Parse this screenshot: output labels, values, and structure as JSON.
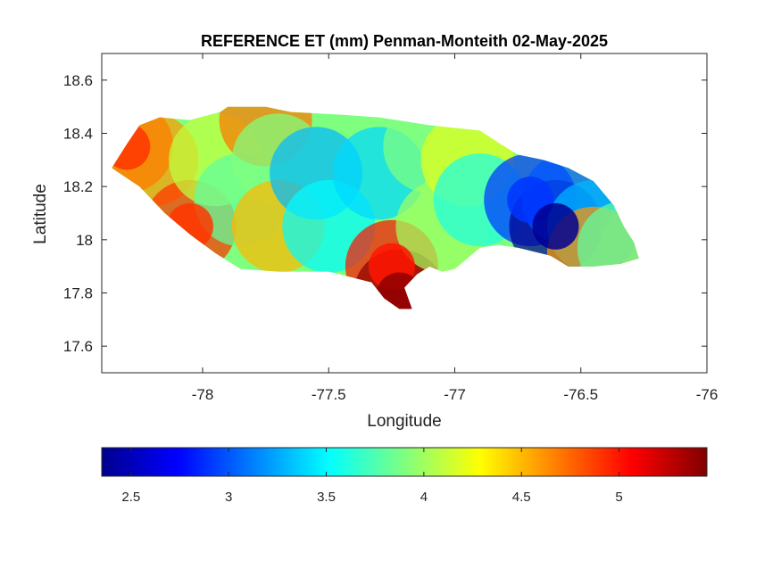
{
  "chart_data": {
    "type": "heatmap",
    "title": "REFERENCE ET (mm) Penman-Monteith 02-May-2025",
    "xlabel": "Longitude",
    "ylabel": "Latitude",
    "xlim": [
      -78.4,
      -76
    ],
    "ylim": [
      17.5,
      18.7
    ],
    "xticks": [
      -78,
      -77.5,
      -77,
      -76.5,
      -76
    ],
    "xtick_labels": [
      "-78",
      "-77.5",
      "-77",
      "-76.5",
      "-76"
    ],
    "yticks": [
      17.6,
      17.8,
      18,
      18.2,
      18.4,
      18.6
    ],
    "ytick_labels": [
      "17.6",
      "17.8",
      "18",
      "18.2",
      "18.4",
      "18.6"
    ],
    "colormap": "jet",
    "colorbar": {
      "orientation": "horizontal",
      "placement": "below",
      "range": [
        2.35,
        5.45
      ],
      "ticks": [
        2.5,
        3,
        3.5,
        4,
        4.5,
        5
      ],
      "tick_labels": [
        "2.5",
        "3",
        "3.5",
        "4",
        "4.5",
        "5"
      ]
    },
    "grid": false,
    "region_outline": [
      [
        -78.36,
        18.27
      ],
      [
        -78.3,
        18.36
      ],
      [
        -78.25,
        18.43
      ],
      [
        -78.17,
        18.46
      ],
      [
        -78.05,
        18.45
      ],
      [
        -77.93,
        18.48
      ],
      [
        -77.9,
        18.5
      ],
      [
        -77.75,
        18.5
      ],
      [
        -77.65,
        18.48
      ],
      [
        -77.45,
        18.47
      ],
      [
        -77.3,
        18.46
      ],
      [
        -77.1,
        18.43
      ],
      [
        -77.0,
        18.42
      ],
      [
        -76.9,
        18.41
      ],
      [
        -76.82,
        18.36
      ],
      [
        -76.75,
        18.32
      ],
      [
        -76.65,
        18.3
      ],
      [
        -76.55,
        18.27
      ],
      [
        -76.45,
        18.22
      ],
      [
        -76.37,
        18.13
      ],
      [
        -76.33,
        18.05
      ],
      [
        -76.29,
        17.99
      ],
      [
        -76.27,
        17.93
      ],
      [
        -76.34,
        17.91
      ],
      [
        -76.45,
        17.9
      ],
      [
        -76.55,
        17.9
      ],
      [
        -76.62,
        17.94
      ],
      [
        -76.75,
        17.97
      ],
      [
        -76.83,
        17.98
      ],
      [
        -76.9,
        17.97
      ],
      [
        -76.95,
        17.93
      ],
      [
        -77.0,
        17.89
      ],
      [
        -77.05,
        17.88
      ],
      [
        -77.1,
        17.9
      ],
      [
        -77.15,
        17.87
      ],
      [
        -77.2,
        17.82
      ],
      [
        -77.17,
        17.74
      ],
      [
        -77.22,
        17.74
      ],
      [
        -77.28,
        17.78
      ],
      [
        -77.33,
        17.84
      ],
      [
        -77.5,
        17.88
      ],
      [
        -77.6,
        17.88
      ],
      [
        -77.7,
        17.88
      ],
      [
        -77.85,
        17.89
      ],
      [
        -77.95,
        17.95
      ],
      [
        -78.05,
        18.02
      ],
      [
        -78.15,
        18.1
      ],
      [
        -78.25,
        18.2
      ]
    ],
    "field_anchors": [
      {
        "lon": -78.3,
        "lat": 18.35,
        "value": 4.9
      },
      {
        "lon": -78.2,
        "lat": 18.3,
        "value": 4.6
      },
      {
        "lon": -78.05,
        "lat": 18.05,
        "value": 4.9
      },
      {
        "lon": -77.95,
        "lat": 18.3,
        "value": 4.1
      },
      {
        "lon": -77.85,
        "lat": 18.15,
        "value": 3.8
      },
      {
        "lon": -77.75,
        "lat": 18.45,
        "value": 4.7
      },
      {
        "lon": -77.7,
        "lat": 18.3,
        "value": 3.9
      },
      {
        "lon": -77.7,
        "lat": 18.05,
        "value": 4.5
      },
      {
        "lon": -77.55,
        "lat": 18.25,
        "value": 3.3
      },
      {
        "lon": -77.5,
        "lat": 18.05,
        "value": 3.5
      },
      {
        "lon": -77.3,
        "lat": 18.25,
        "value": 3.4
      },
      {
        "lon": -77.25,
        "lat": 17.9,
        "value": 5.0
      },
      {
        "lon": -77.22,
        "lat": 17.79,
        "value": 5.4
      },
      {
        "lon": -77.1,
        "lat": 18.35,
        "value": 3.9
      },
      {
        "lon": -77.05,
        "lat": 18.05,
        "value": 4.0
      },
      {
        "lon": -76.95,
        "lat": 18.3,
        "value": 4.2
      },
      {
        "lon": -76.9,
        "lat": 18.15,
        "value": 3.6
      },
      {
        "lon": -76.7,
        "lat": 18.15,
        "value": 2.9
      },
      {
        "lon": -76.6,
        "lat": 18.05,
        "value": 2.4
      },
      {
        "lon": -76.55,
        "lat": 18.15,
        "value": 3.0
      },
      {
        "lon": -76.45,
        "lat": 18.05,
        "value": 3.3
      },
      {
        "lon": -76.45,
        "lat": 17.95,
        "value": 4.6
      },
      {
        "lon": -76.33,
        "lat": 17.97,
        "value": 3.8
      }
    ]
  }
}
